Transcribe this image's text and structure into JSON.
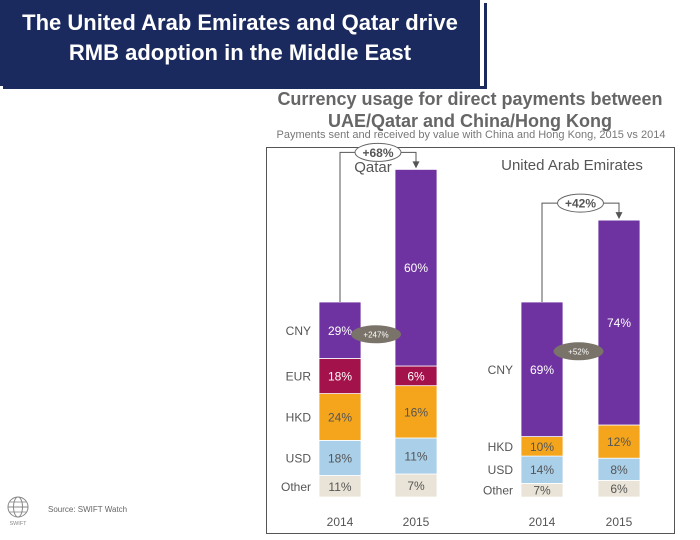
{
  "banner": {
    "title": "The United Arab Emirates and Qatar drive RMB adoption in the Middle East"
  },
  "source": "Source: SWIFT Watch",
  "logo": {
    "icon": "swift-globe-icon",
    "text": "SWIFT"
  },
  "chart_data": {
    "type": "bar",
    "stacked": true,
    "title": "Currency usage for direct payments between UAE/Qatar and China/Hong Kong",
    "subtitle": "Payments sent and received by value with China and Hong Kong, 2015 vs 2014",
    "colors": {
      "CNY": "#6e33a0",
      "EUR": "#a3124a",
      "HKD": "#f4a51c",
      "USD": "#a9cfe9",
      "Other": "#e9e4d7"
    },
    "panels": [
      {
        "name": "Qatar",
        "categories": [
          "2014",
          "2015"
        ],
        "total_change": "+68%",
        "cny_change": "+247%",
        "series": [
          {
            "name": "Other",
            "values": [
              11,
              7
            ],
            "labels": [
              "11%",
              "7%"
            ]
          },
          {
            "name": "USD",
            "values": [
              18,
              11
            ],
            "labels": [
              "18%",
              "11%"
            ]
          },
          {
            "name": "HKD",
            "values": [
              24,
              16
            ],
            "labels": [
              "24%",
              "16%"
            ]
          },
          {
            "name": "EUR",
            "values": [
              18,
              6
            ],
            "labels": [
              "18%",
              "6%"
            ]
          },
          {
            "name": "CNY",
            "values": [
              29,
              60
            ],
            "labels": [
              "29%",
              "60%"
            ]
          }
        ],
        "relative_totals": [
          100,
          168
        ]
      },
      {
        "name": "United Arab Emirates",
        "categories": [
          "2014",
          "2015"
        ],
        "total_change": "+42%",
        "cny_change": "+52%",
        "series": [
          {
            "name": "Other",
            "values": [
              7,
              6
            ],
            "labels": [
              "7%",
              "6%"
            ]
          },
          {
            "name": "USD",
            "values": [
              14,
              8
            ],
            "labels": [
              "14%",
              "8%"
            ]
          },
          {
            "name": "HKD",
            "values": [
              10,
              12
            ],
            "labels": [
              "10%",
              "12%"
            ]
          },
          {
            "name": "EUR",
            "values": [
              0,
              0
            ],
            "labels": [
              "",
              ""
            ]
          },
          {
            "name": "CNY",
            "values": [
              69,
              74
            ],
            "labels": [
              "69%",
              "74%"
            ]
          }
        ],
        "relative_totals": [
          100,
          142
        ]
      }
    ]
  }
}
